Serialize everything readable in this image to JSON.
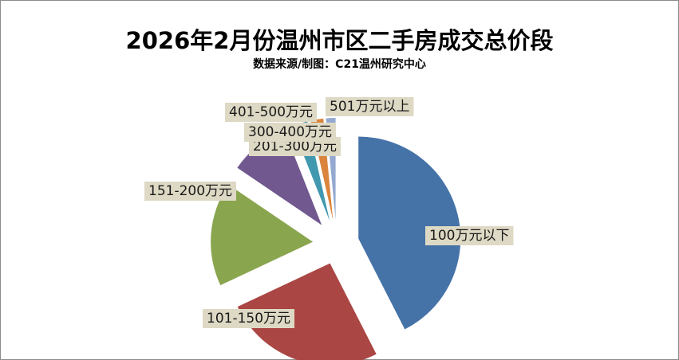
{
  "title": "2026年2月份温州市区二手房成交总价段",
  "subtitle": "数据来源/制图：C21温州研究中心",
  "chart_data": {
    "type": "pie",
    "title": "2026年2月份温州市区二手房成交总价段",
    "subtitle": "数据来源/制图：C21温州研究中心",
    "legend": "none",
    "labels_shown": "category-names",
    "exploded": true,
    "slices": [
      {
        "label": "100万元以下",
        "value": 42.5,
        "color": "#4572A7"
      },
      {
        "label": "101-150万元",
        "value": 25.5,
        "color": "#AA4643"
      },
      {
        "label": "151-200万元",
        "value": 16.5,
        "color": "#89A54E"
      },
      {
        "label": "201-300万元",
        "value": 9.5,
        "color": "#71588F"
      },
      {
        "label": "300-400万元",
        "value": 2.5,
        "color": "#4198AF"
      },
      {
        "label": "401-500万元",
        "value": 2.0,
        "color": "#DB843D"
      },
      {
        "label": "501万元以上",
        "value": 1.5,
        "color": "#93A9CF"
      }
    ]
  }
}
